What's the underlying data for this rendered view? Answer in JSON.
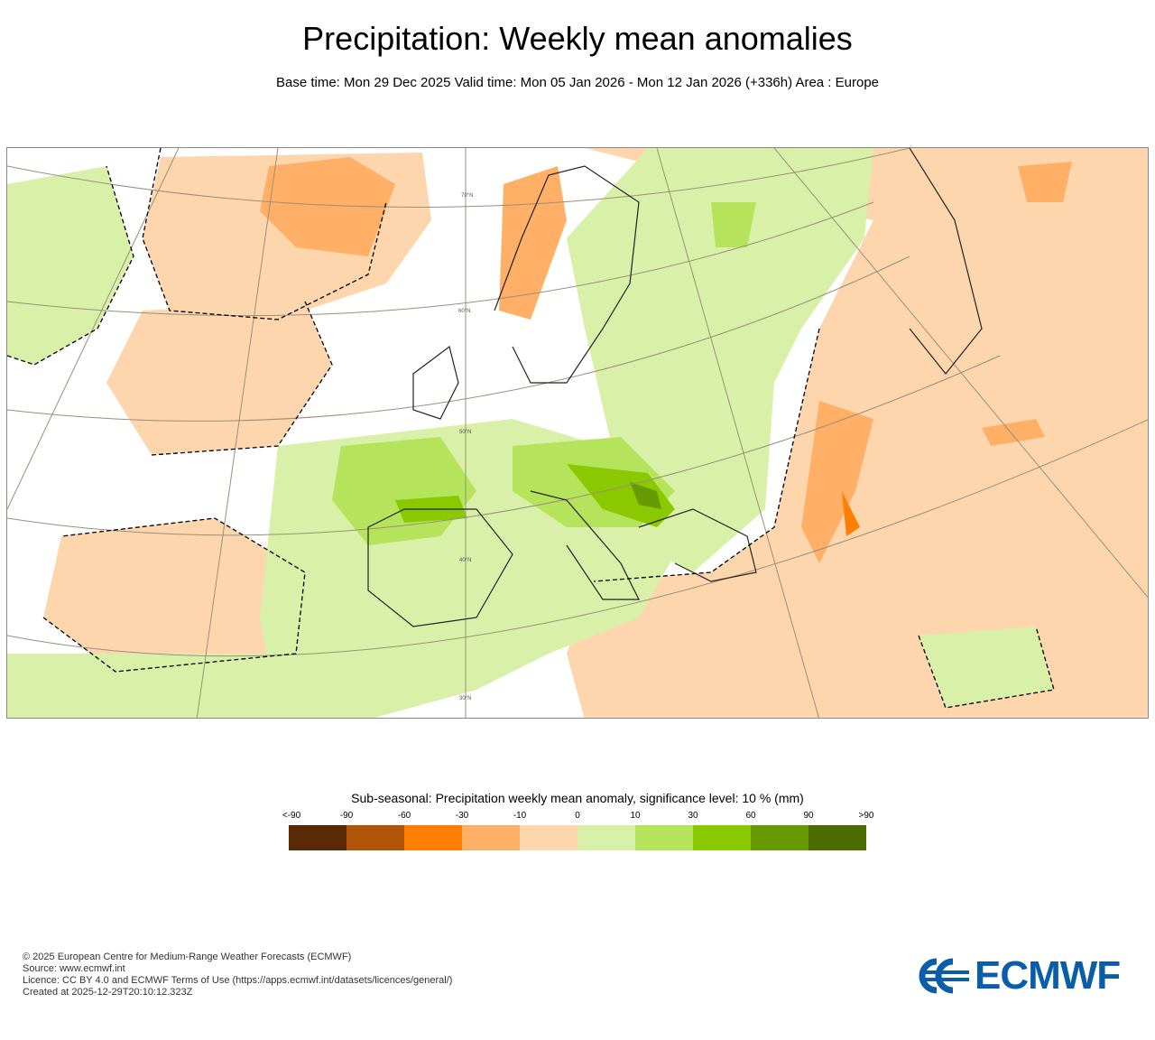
{
  "header": {
    "title": "Precipitation: Weekly mean anomalies",
    "subtitle": "Base time: Mon 29 Dec 2025 Valid time: Mon 05 Jan 2026 - Mon 12 Jan 2026 (+336h) Area : Europe"
  },
  "map": {
    "lat_labels": [
      "70°N",
      "60°N",
      "50°N",
      "40°N",
      "30°N"
    ]
  },
  "legend": {
    "title": "Sub-seasonal: Precipitation weekly mean anomaly, significance level: 10 % (mm)",
    "labels": [
      "<-90",
      "-90",
      "-60",
      "-30",
      "-10",
      "0",
      "10",
      "30",
      "60",
      "90",
      ">90"
    ],
    "colors": [
      "#5a2a07",
      "#b05407",
      "#ff8000",
      "#ffb066",
      "#fdd6ad",
      "#d9f0a8",
      "#b5e35c",
      "#8ac800",
      "#679a00",
      "#4d6b00"
    ]
  },
  "footer": {
    "line1": "© 2025 European Centre for Medium-Range Weather Forecasts (ECMWF)",
    "line2": "Source: www.ecmwf.int",
    "line3": "Licence: CC BY 4.0 and ECMWF Terms of Use (https://apps.ecmwf.int/datasets/licences/general/)",
    "line4": "Created at 2025-12-29T20:10:12.323Z"
  },
  "logo": {
    "text": "ECMWF",
    "color": "#0a5ea8"
  }
}
